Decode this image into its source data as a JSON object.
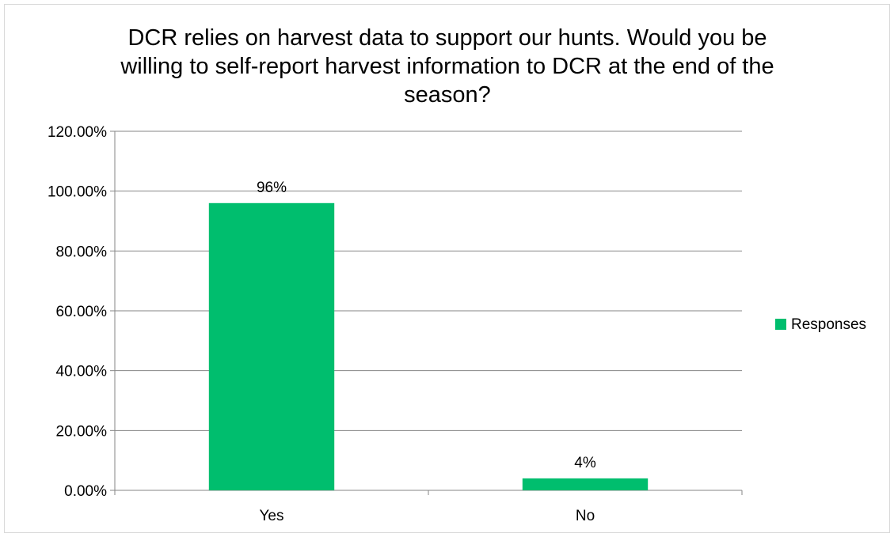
{
  "chart_data": {
    "type": "bar",
    "title": "DCR relies on harvest data to support our hunts.  Would you be willing to self-report harvest information to DCR at the end of the season?",
    "categories": [
      "Yes",
      "No"
    ],
    "series": [
      {
        "name": "Responses",
        "values": [
          0.96,
          0.04
        ],
        "color": "#00be6e",
        "data_labels": [
          "96%",
          "4%"
        ]
      }
    ],
    "ylim": [
      0,
      1.2
    ],
    "yticks": [
      0,
      0.2,
      0.4,
      0.6,
      0.8,
      1.0,
      1.2
    ],
    "ytick_labels": [
      "0.00%",
      "20.00%",
      "40.00%",
      "60.00%",
      "80.00%",
      "100.00%",
      "120.00%"
    ],
    "xlabel": "",
    "ylabel": "",
    "grid": true,
    "legend_position": "right",
    "gridline_color": "#868686"
  }
}
